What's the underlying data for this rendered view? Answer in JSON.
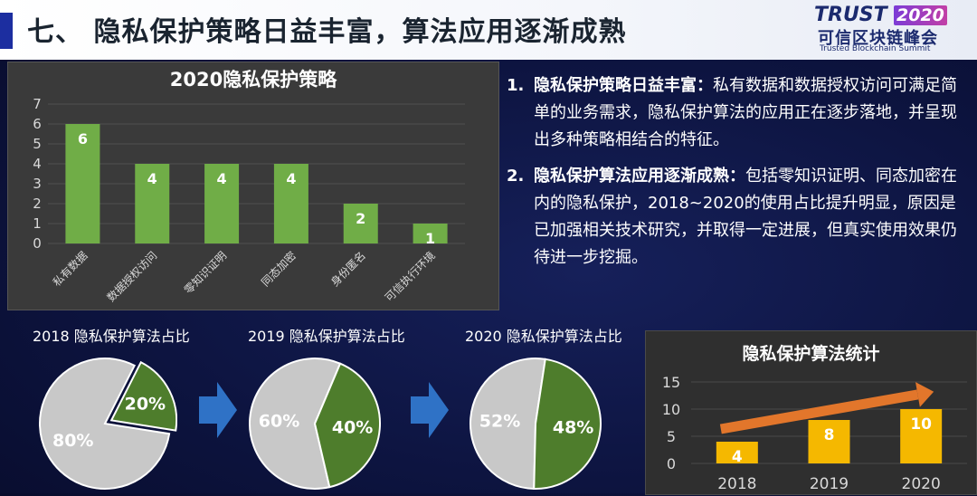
{
  "header": {
    "title": "七、 隐私保护策略日益丰富，算法应用逐渐成熟",
    "logo_trust": "TRUST",
    "logo_year": "2020",
    "logo_cn": "可信区块链峰会",
    "logo_en": "Trusted Blockchain Summit"
  },
  "text_panel": {
    "items": [
      {
        "num": "1.",
        "heading": "隐私保护策略日益丰富：",
        "body": "私有数据和数据授权访问可满足简单的业务需求，隐私保护算法的应用正在逐步落地，并呈现出多种策略相结合的特征。"
      },
      {
        "num": "2.",
        "heading": "隐私保护算法应用逐渐成熟：",
        "body": "包括零知识证明、同态加密在内的隐私保护，2018~2020的使用占比提升明显，原因是已加强相关技术研究，并取得一定进展，但真实使用效果仍待进一步挖掘。"
      }
    ]
  },
  "chart_data": [
    {
      "type": "bar",
      "title": "2020隐私保护策略",
      "categories": [
        "私有数据",
        "数据授权访问",
        "零知识证明",
        "同态加密",
        "身份匿名",
        "可信执行环境"
      ],
      "values": [
        6,
        4,
        4,
        4,
        2,
        1
      ],
      "ylim": [
        0,
        7
      ],
      "yticks": [
        0,
        1,
        2,
        3,
        4,
        5,
        6,
        7
      ],
      "bar_color": "#70ad47",
      "background": "#3a3a3a"
    },
    {
      "type": "pie",
      "title": "2018 隐私保护算法占比",
      "values": [
        80,
        20
      ],
      "labels": [
        "80%",
        "20%"
      ],
      "colors": [
        "#c8c8c8",
        "#4e7d2c"
      ]
    },
    {
      "type": "pie",
      "title": "2019 隐私保护算法占比",
      "values": [
        60,
        40
      ],
      "labels": [
        "60%",
        "40%"
      ],
      "colors": [
        "#c8c8c8",
        "#4e7d2c"
      ]
    },
    {
      "type": "pie",
      "title": "2020 隐私保护算法占比",
      "values": [
        52,
        48
      ],
      "labels": [
        "52%",
        "48%"
      ],
      "colors": [
        "#c8c8c8",
        "#4e7d2c"
      ]
    },
    {
      "type": "bar",
      "title": "隐私保护算法统计",
      "categories": [
        "2018",
        "2019",
        "2020"
      ],
      "values": [
        4,
        8,
        10
      ],
      "ylim": [
        0,
        15
      ],
      "yticks": [
        0,
        5,
        10,
        15
      ],
      "bar_color": "#f5b800",
      "trend_arrow_color": "#e2762b",
      "background": "#2f2f2f"
    }
  ]
}
